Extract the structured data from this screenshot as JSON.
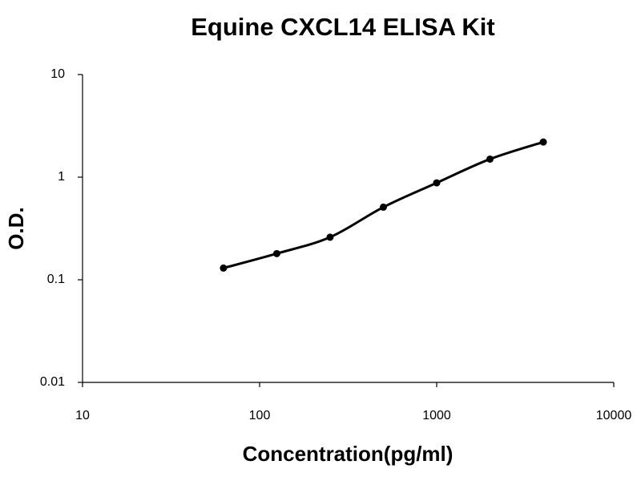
{
  "chart_data": {
    "type": "scatter",
    "title": "Equine CXCL14 ELISA Kit",
    "x_label": "Concentration(pg/ml)",
    "y_label": "O.D.",
    "x_log": true,
    "y_log": true,
    "xlim": [
      10,
      10000
    ],
    "ylim": [
      0.01,
      10
    ],
    "xticks": [
      10,
      100,
      1000,
      10000
    ],
    "yticks": [
      0.01,
      0.1,
      1,
      10
    ],
    "grid": false,
    "color": "#000000",
    "x": [
      62.5,
      125,
      250,
      500,
      1000,
      2000,
      4000
    ],
    "values": [
      0.13,
      0.18,
      0.26,
      0.51,
      0.88,
      1.5,
      2.2
    ]
  }
}
